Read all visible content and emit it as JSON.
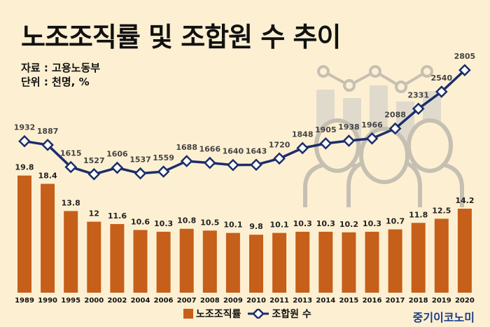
{
  "title": "노조조직률 및 조합원 수 추이",
  "source": "자료 : 고용노동부",
  "unit": "단위 : 천명, %",
  "brand": "중기이코노미",
  "colors": {
    "bar": "#c65f1a",
    "line": "#1b2e6b",
    "background": "#fdf0d2"
  },
  "icons": {
    "watermark": "group-of-people-with-chart-icon"
  },
  "chart_data": {
    "type": "bar",
    "categories": [
      "1989",
      "1990",
      "1995",
      "2000",
      "2002",
      "2004",
      "2006",
      "2007",
      "2008",
      "2009",
      "2010",
      "2011",
      "2013",
      "2014",
      "2015",
      "2016",
      "2017",
      "2018",
      "2019",
      "2020"
    ],
    "series": [
      {
        "name": "노조조직률",
        "type": "bar",
        "values": [
          19.8,
          18.4,
          13.8,
          12,
          11.6,
          10.6,
          10.3,
          10.8,
          10.5,
          10.1,
          9.8,
          10.1,
          10.3,
          10.3,
          10.2,
          10.3,
          10.7,
          11.8,
          12.5,
          14.2
        ]
      },
      {
        "name": "조합원 수",
        "type": "line",
        "values": [
          1932,
          1887,
          1615,
          1527,
          1606,
          1537,
          1559,
          1688,
          1666,
          1640,
          1643,
          1720,
          1848,
          1905,
          1938,
          1966,
          2088,
          2331,
          2540,
          2805
        ]
      }
    ],
    "value_labels": {
      "bar": [
        "19.8",
        "18.4",
        "13.8",
        "12",
        "11.6",
        "10.6",
        "10.3",
        "10.8",
        "10.5",
        "10.1",
        "9.8",
        "10.1",
        "10.3",
        "10.3",
        "10.2",
        "10.3",
        "10.7",
        "11.8",
        "12.5",
        "14.2"
      ],
      "line": [
        "1932",
        "1887",
        "1615",
        "1527",
        "1606",
        "1537",
        "1559",
        "1688",
        "1666",
        "1640",
        "1643",
        "1720",
        "1848",
        "1905",
        "1938",
        "1966",
        "2088",
        "2331",
        "2540",
        "2805"
      ]
    },
    "legend": [
      "노조조직률",
      "조합원 수"
    ],
    "legend_position": "bottom",
    "grid": false
  }
}
